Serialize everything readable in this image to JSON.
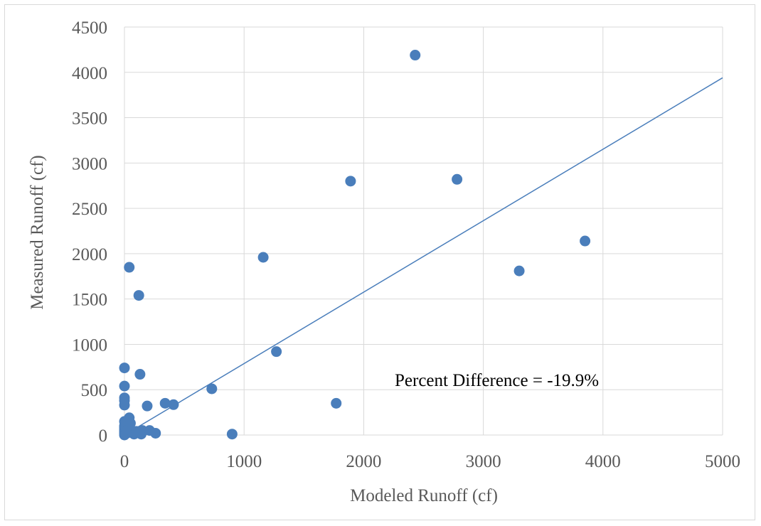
{
  "chart_data": {
    "type": "scatter",
    "title": "",
    "xlabel": "Modeled Runoff (cf)",
    "ylabel": "Measured Runoff (cf)",
    "xlim": [
      0,
      5000
    ],
    "ylim": [
      0,
      4500
    ],
    "x_ticks": [
      "0",
      "1000",
      "2000",
      "3000",
      "4000",
      "5000"
    ],
    "y_ticks": [
      "0",
      "500",
      "1000",
      "1500",
      "2000",
      "2500",
      "3000",
      "3500",
      "4000",
      "4500"
    ],
    "grid": true,
    "legend": "none",
    "marker_color": "#4a7ebb",
    "annotation": "Percent Difference = -19.9%",
    "trendline": {
      "type": "linear",
      "points": [
        [
          0,
          0
        ],
        [
          5000,
          3940
        ]
      ],
      "color": "#4a7ebb"
    },
    "series": [
      {
        "points": [
          [
            0,
            0
          ],
          [
            0,
            20
          ],
          [
            0,
            40
          ],
          [
            0,
            60
          ],
          [
            0,
            80
          ],
          [
            0,
            100
          ],
          [
            0,
            150
          ],
          [
            0,
            330
          ],
          [
            0,
            380
          ],
          [
            0,
            410
          ],
          [
            0,
            540
          ],
          [
            0,
            740
          ],
          [
            20,
            20
          ],
          [
            30,
            60
          ],
          [
            40,
            190
          ],
          [
            50,
            130
          ],
          [
            60,
            50
          ],
          [
            40,
            1850
          ],
          [
            80,
            10
          ],
          [
            90,
            20
          ],
          [
            100,
            40
          ],
          [
            120,
            1540
          ],
          [
            130,
            670
          ],
          [
            140,
            10
          ],
          [
            150,
            50
          ],
          [
            190,
            320
          ],
          [
            210,
            50
          ],
          [
            260,
            20
          ],
          [
            340,
            350
          ],
          [
            410,
            335
          ],
          [
            730,
            510
          ],
          [
            900,
            10
          ],
          [
            1160,
            1960
          ],
          [
            1270,
            920
          ],
          [
            1770,
            350
          ],
          [
            1890,
            2800
          ],
          [
            2430,
            4190
          ],
          [
            2780,
            2820
          ],
          [
            3300,
            1810
          ],
          [
            3850,
            2140
          ]
        ]
      }
    ]
  }
}
